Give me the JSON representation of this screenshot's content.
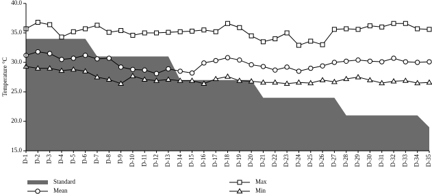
{
  "chart_data": {
    "type": "line",
    "y_label": "Temperature °C",
    "categories": [
      "D-1",
      "D-2",
      "D-3",
      "D-4",
      "D-5",
      "D-6",
      "D-7",
      "D-8",
      "D-9",
      "D-10",
      "D-11",
      "D-12",
      "D-13",
      "D-14",
      "D-15",
      "D-16",
      "D-17",
      "D-18",
      "D-19",
      "D-20",
      "D-21",
      "D-22",
      "D-23",
      "D-24",
      "D-25",
      "D-26",
      "D-27",
      "D-28",
      "D-29",
      "D-30",
      "D-31",
      "D-32",
      "D-33",
      "D-34",
      "D-35"
    ],
    "ylim": [
      15,
      40
    ],
    "yticks": [
      {
        "value": 15,
        "label": "15.0"
      },
      {
        "value": 20,
        "label": "20.0"
      },
      {
        "value": 25,
        "label": "25.0"
      },
      {
        "value": 30,
        "label": "30.0"
      },
      {
        "value": 35,
        "label": "35.0"
      },
      {
        "value": 40,
        "label": "40.0"
      }
    ],
    "series": [
      {
        "name": "Standard",
        "color": "#6b6b6b",
        "fill": true,
        "marker": "none",
        "values": [
          34,
          34,
          34,
          34,
          34,
          34,
          31,
          31,
          31,
          31,
          31,
          31,
          31,
          27,
          27,
          27,
          27,
          27,
          27,
          27,
          24,
          24,
          24,
          24,
          24,
          24,
          24,
          21,
          21,
          21,
          21,
          21,
          21,
          21,
          19
        ]
      },
      {
        "name": "Max",
        "color": "#000000",
        "fill": false,
        "marker": "square",
        "values": [
          35.7,
          36.8,
          36.4,
          34.3,
          35.2,
          35.7,
          36.3,
          35.1,
          35.4,
          34.6,
          35.0,
          35.0,
          35.1,
          35.2,
          35.3,
          35.5,
          35.2,
          36.6,
          35.9,
          34.5,
          33.5,
          34.0,
          35.0,
          32.9,
          33.6,
          33.0,
          35.6,
          35.7,
          35.6,
          36.2,
          36.0,
          36.6,
          36.6,
          35.7,
          35.6
        ]
      },
      {
        "name": "Mean",
        "color": "#000000",
        "fill": false,
        "marker": "circle",
        "values": [
          31.2,
          31.8,
          31.5,
          30.5,
          30.7,
          31.2,
          30.6,
          30.7,
          29.2,
          28.8,
          28.7,
          28.1,
          28.9,
          28.5,
          28.2,
          29.9,
          30.3,
          30.8,
          30.4,
          29.6,
          29.3,
          28.7,
          29.2,
          28.5,
          29.0,
          29.4,
          30.0,
          30.2,
          30.4,
          30.2,
          30.1,
          30.7,
          30.1,
          30.0,
          30.1
        ]
      },
      {
        "name": "Min",
        "color": "#000000",
        "fill": false,
        "marker": "triangle",
        "values": [
          29.3,
          29.0,
          29.0,
          28.6,
          28.8,
          28.5,
          27.5,
          27.1,
          26.4,
          27.7,
          27.1,
          26.9,
          27.1,
          26.9,
          26.9,
          26.4,
          27.2,
          27.6,
          26.9,
          26.8,
          26.6,
          26.6,
          26.4,
          26.6,
          26.5,
          27.0,
          26.7,
          27.2,
          27.5,
          27.0,
          26.5,
          26.8,
          26.9,
          26.5,
          26.6
        ]
      }
    ]
  }
}
